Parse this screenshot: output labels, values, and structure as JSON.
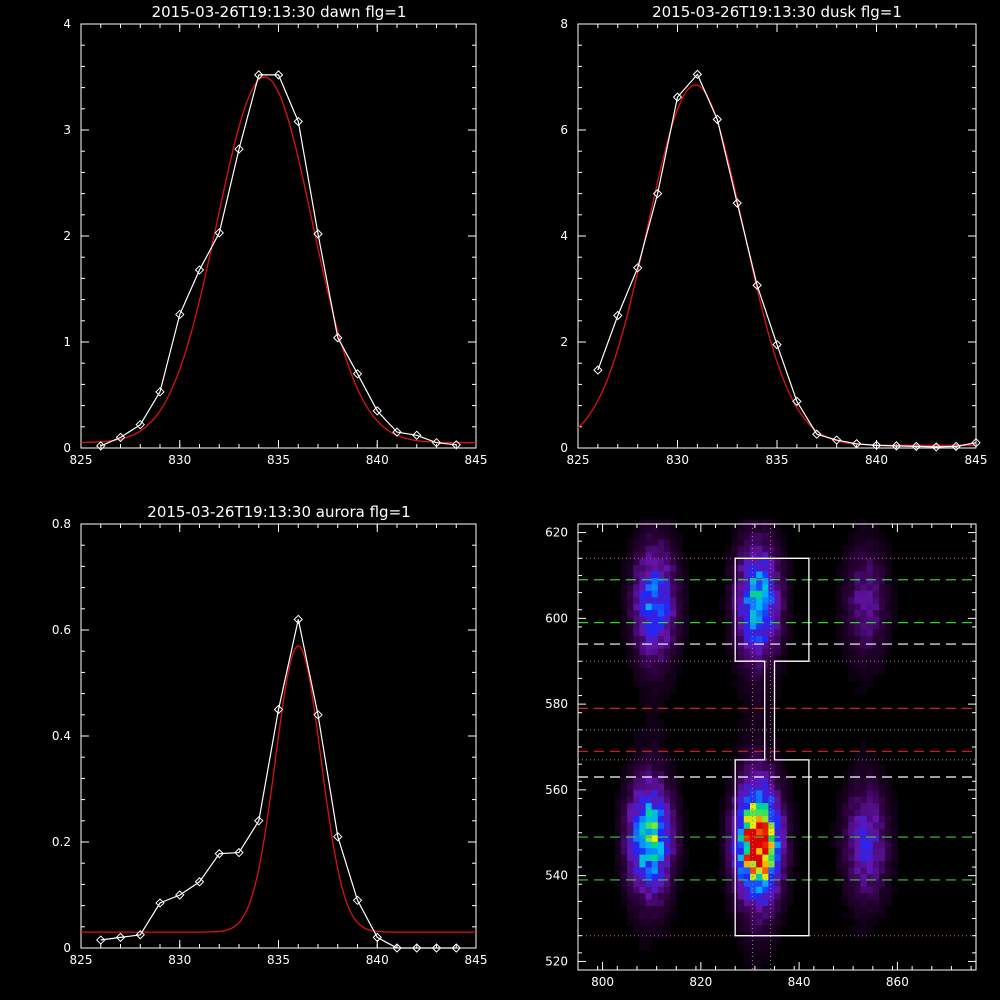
{
  "colors": {
    "background": "#000000",
    "axes": "#ffffff",
    "observed": "#ffffff",
    "fit": "#dd1111",
    "green_line": "#33cc33",
    "red_line": "#dd2222",
    "white_dash": "#ffffff",
    "pink_dot": "#cc66aa"
  },
  "chart_data": [
    {
      "id": "dawn",
      "type": "line",
      "title": "2015-03-26T19:13:30 dawn flg=1",
      "xlim": [
        825,
        845
      ],
      "ylim": [
        0,
        4
      ],
      "xticks": [
        825,
        830,
        835,
        840,
        845
      ],
      "yticks": [
        0,
        1,
        2,
        3,
        4
      ],
      "series": [
        {
          "role": "observed",
          "marker": "diamond",
          "x": [
            826,
            827,
            828,
            829,
            830,
            831,
            832,
            833,
            834,
            835,
            836,
            837,
            838,
            839,
            840,
            841,
            842,
            843,
            844
          ],
          "y": [
            0.02,
            0.1,
            0.22,
            0.53,
            1.26,
            1.68,
            2.03,
            2.82,
            3.52,
            3.52,
            3.08,
            2.02,
            1.04,
            0.7,
            0.35,
            0.15,
            0.12,
            0.05,
            0.03
          ]
        },
        {
          "role": "fit",
          "gauss": {
            "amp": 3.45,
            "center": 834.3,
            "sigma": 2.4,
            "offset": 0.05
          }
        }
      ]
    },
    {
      "id": "dusk",
      "type": "line",
      "title": "2015-03-26T19:13:30 dusk flg=1",
      "xlim": [
        825,
        845
      ],
      "ylim": [
        0,
        8
      ],
      "xticks": [
        825,
        830,
        835,
        840,
        845
      ],
      "yticks": [
        0,
        2,
        4,
        6,
        8
      ],
      "series": [
        {
          "role": "observed",
          "marker": "diamond",
          "x": [
            826,
            827,
            828,
            829,
            830,
            831,
            832,
            833,
            834,
            835,
            836,
            837,
            838,
            839,
            840,
            841,
            842,
            843,
            844,
            845
          ],
          "y": [
            1.47,
            2.5,
            3.4,
            4.8,
            6.62,
            7.05,
            6.2,
            4.62,
            3.07,
            1.95,
            0.88,
            0.26,
            0.15,
            0.08,
            0.05,
            0.04,
            0.03,
            0.02,
            0.03,
            0.1
          ]
        },
        {
          "role": "fit",
          "gauss": {
            "amp": 6.8,
            "center": 830.9,
            "sigma": 2.4,
            "offset": 0.05
          }
        }
      ]
    },
    {
      "id": "aurora",
      "type": "line",
      "title": "2015-03-26T19:13:30 aurora flg=1",
      "xlim": [
        825,
        845
      ],
      "ylim": [
        0,
        0.8
      ],
      "xticks": [
        825,
        830,
        835,
        840,
        845
      ],
      "yticks": [
        0,
        0.2,
        0.4,
        0.6,
        0.8
      ],
      "series": [
        {
          "role": "observed",
          "marker": "diamond",
          "x": [
            826,
            827,
            828,
            829,
            830,
            831,
            832,
            833,
            834,
            835,
            836,
            837,
            838,
            839,
            840,
            841,
            842,
            843,
            844
          ],
          "y": [
            0.015,
            0.02,
            0.025,
            0.085,
            0.1,
            0.125,
            0.178,
            0.18,
            0.24,
            0.45,
            0.62,
            0.44,
            0.21,
            0.09,
            0.02,
            0.0,
            0.0,
            0.0,
            0.0
          ]
        },
        {
          "role": "fit",
          "gauss": {
            "amp": 0.54,
            "center": 836.0,
            "sigma": 1.15,
            "offset": 0.03
          }
        }
      ]
    },
    {
      "id": "image",
      "type": "heatmap",
      "title": "",
      "xlim": [
        795,
        876
      ],
      "ylim": [
        518,
        622
      ],
      "xticks": [
        800,
        820,
        840,
        860
      ],
      "yticks": [
        520,
        540,
        560,
        580,
        600,
        620
      ],
      "colormap": "rainbow (black→purple→blue→cyan→green→yellow→red)",
      "blobs": [
        {
          "x": 810,
          "y": 603,
          "amp": 0.45
        },
        {
          "x": 809,
          "y": 548,
          "amp": 0.62
        },
        {
          "x": 831,
          "y": 603,
          "amp": 0.55
        },
        {
          "x": 831,
          "y": 547,
          "amp": 1.0
        },
        {
          "x": 853,
          "y": 603,
          "amp": 0.22
        },
        {
          "x": 853,
          "y": 547,
          "amp": 0.32
        }
      ],
      "vertical_dotted_x": [
        830.5,
        834.2
      ],
      "hlines": [
        {
          "y": 614,
          "style": "pink-dot"
        },
        {
          "y": 609,
          "style": "green-dash"
        },
        {
          "y": 599,
          "style": "green-dash"
        },
        {
          "y": 594,
          "style": "white-dash"
        },
        {
          "y": 590,
          "style": "pink-dot"
        },
        {
          "y": 579,
          "style": "red-dash"
        },
        {
          "y": 574,
          "style": "pink-dot"
        },
        {
          "y": 569,
          "style": "red-dash"
        },
        {
          "y": 567,
          "style": "pink-dot"
        },
        {
          "y": 563,
          "style": "white-dash"
        },
        {
          "y": 549,
          "style": "green-dash"
        },
        {
          "y": 539,
          "style": "green-dash"
        },
        {
          "y": 526,
          "style": "pink-dot"
        }
      ],
      "box_outline": [
        [
          827,
          526
        ],
        [
          842,
          526
        ],
        [
          842,
          567
        ],
        [
          835,
          567
        ],
        [
          835,
          590
        ],
        [
          842,
          590
        ],
        [
          842,
          614
        ],
        [
          827,
          614
        ],
        [
          827,
          590
        ],
        [
          833,
          590
        ],
        [
          833,
          567
        ],
        [
          827,
          567
        ]
      ]
    }
  ]
}
